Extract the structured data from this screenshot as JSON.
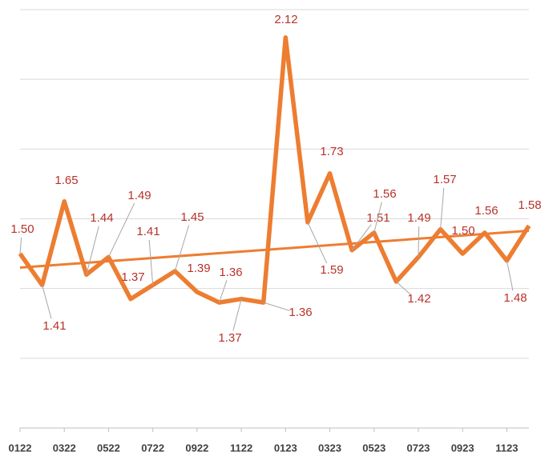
{
  "chart_data": {
    "type": "line",
    "categories": [
      "0122",
      null,
      "0322",
      null,
      "0522",
      null,
      "0722",
      null,
      "0922",
      null,
      "1122",
      null,
      "0123",
      null,
      "0323",
      null,
      "0523",
      null,
      "0723",
      null,
      "0923",
      null,
      "1123",
      null
    ],
    "values": [
      1.5,
      1.41,
      1.65,
      1.44,
      1.49,
      1.37,
      1.41,
      1.45,
      1.39,
      1.36,
      1.37,
      1.36,
      2.12,
      1.59,
      1.73,
      1.51,
      1.56,
      1.42,
      1.49,
      1.57,
      1.5,
      1.56,
      1.48,
      1.58
    ],
    "value_labels": [
      "1.50",
      "1.41",
      "1.65",
      "1.44",
      "1.49",
      "1.37",
      "1.41",
      "1.45",
      "1.39",
      "1.36",
      "1.37",
      "1.36",
      "2.12",
      "1.59",
      "1.73",
      "1.51",
      "1.56",
      "1.42",
      "1.49",
      "1.57",
      "1.50",
      "1.56",
      "1.48",
      "1.58"
    ],
    "color": "#ed7d31",
    "ylim": [
      1.0,
      2.2
    ],
    "yticks": [
      1.0,
      1.2,
      1.4,
      1.6,
      1.8,
      2.0,
      2.2
    ],
    "grid": true,
    "trendline": true
  }
}
